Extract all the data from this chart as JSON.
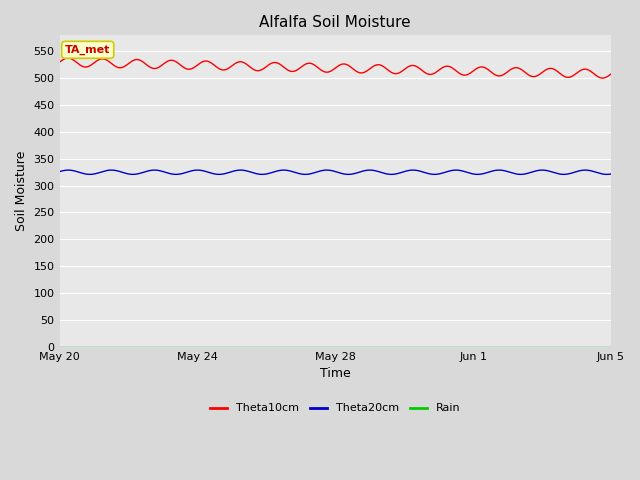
{
  "title": "Alfalfa Soil Moisture",
  "xlabel": "Time",
  "ylabel": "Soil Moisture",
  "background_color": "#d9d9d9",
  "plot_bg_color": "#e8e8e8",
  "ylim": [
    0,
    580
  ],
  "yticks": [
    0,
    50,
    100,
    150,
    200,
    250,
    300,
    350,
    400,
    450,
    500,
    550
  ],
  "xtick_labels": [
    "May 20",
    "May 24",
    "May 28",
    "Jun 1",
    "Jun 5"
  ],
  "xtick_positions": [
    0,
    4,
    8,
    12,
    16
  ],
  "legend_entries": [
    "Theta10cm",
    "Theta20cm",
    "Rain"
  ],
  "legend_colors": [
    "#ff0000",
    "#0000cc",
    "#00cc00"
  ],
  "annotation_text": "TA_met",
  "annotation_bg": "#ffffcc",
  "annotation_border": "#cccc00",
  "theta10_base": 530,
  "theta10_amplitude": 8,
  "theta10_trend": -22,
  "theta10_freq": 1.0,
  "theta20_base": 325,
  "theta20_amplitude": 4,
  "theta20_freq": 0.8,
  "n_days": 16,
  "n_points": 1000,
  "title_fontsize": 11,
  "axis_label_fontsize": 9,
  "tick_fontsize": 8,
  "line_width": 1.0
}
